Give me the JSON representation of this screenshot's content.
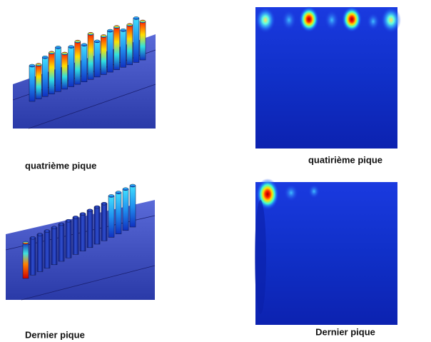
{
  "figures": [
    {
      "caption": "quatrième pique"
    },
    {
      "caption": "quatirième pique"
    },
    {
      "caption": "Dernier pique"
    },
    {
      "caption": "Dernier pique"
    }
  ]
}
